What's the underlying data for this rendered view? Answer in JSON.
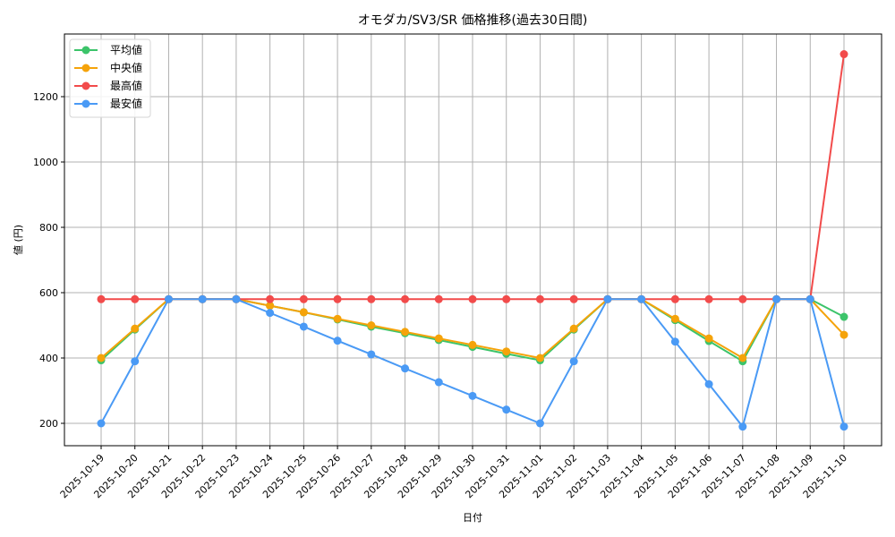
{
  "chart_data": {
    "type": "line",
    "title": "オモダカ/SV3/SR 価格推移(過去30日間)",
    "xlabel": "日付",
    "ylabel": "値 (円)",
    "ylim": [
      135,
      1385
    ],
    "yticks": [
      200,
      400,
      600,
      800,
      1000,
      1200
    ],
    "grid": true,
    "legend_position": "upper left",
    "x": [
      "2025-10-19",
      "2025-10-20",
      "2025-10-21",
      "2025-10-22",
      "2025-10-23",
      "2025-10-24",
      "2025-10-25",
      "2025-10-26",
      "2025-10-27",
      "2025-10-28",
      "2025-10-29",
      "2025-10-30",
      "2025-10-31",
      "2025-11-01",
      "2025-11-02",
      "2025-11-03",
      "2025-11-04",
      "2025-11-05",
      "2025-11-06",
      "2025-11-07",
      "2025-11-08",
      "2025-11-09",
      "2025-11-10"
    ],
    "series": [
      {
        "name": "平均値",
        "color": "#3cc46a",
        "values": [
          393,
          487,
          580,
          580,
          580,
          560,
          540,
          518,
          496,
          476,
          455,
          434,
          413,
          393,
          487,
          580,
          580,
          516,
          452,
          390,
          580,
          580,
          526
        ]
      },
      {
        "name": "中央値",
        "color": "#f5a30a",
        "values": [
          400,
          490,
          580,
          580,
          580,
          560,
          540,
          520,
          500,
          480,
          460,
          440,
          420,
          400,
          490,
          580,
          580,
          520,
          460,
          400,
          580,
          580,
          471
        ]
      },
      {
        "name": "最高値",
        "color": "#f24b4b",
        "values": [
          580,
          580,
          580,
          580,
          580,
          580,
          580,
          580,
          580,
          580,
          580,
          580,
          580,
          580,
          580,
          580,
          580,
          580,
          580,
          580,
          580,
          580,
          1330
        ]
      },
      {
        "name": "最安値",
        "color": "#4a9af5",
        "values": [
          200,
          390,
          580,
          580,
          580,
          538,
          496,
          453,
          411,
          368,
          326,
          284,
          242,
          200,
          390,
          580,
          580,
          450,
          320,
          190,
          580,
          580,
          190
        ]
      }
    ]
  }
}
